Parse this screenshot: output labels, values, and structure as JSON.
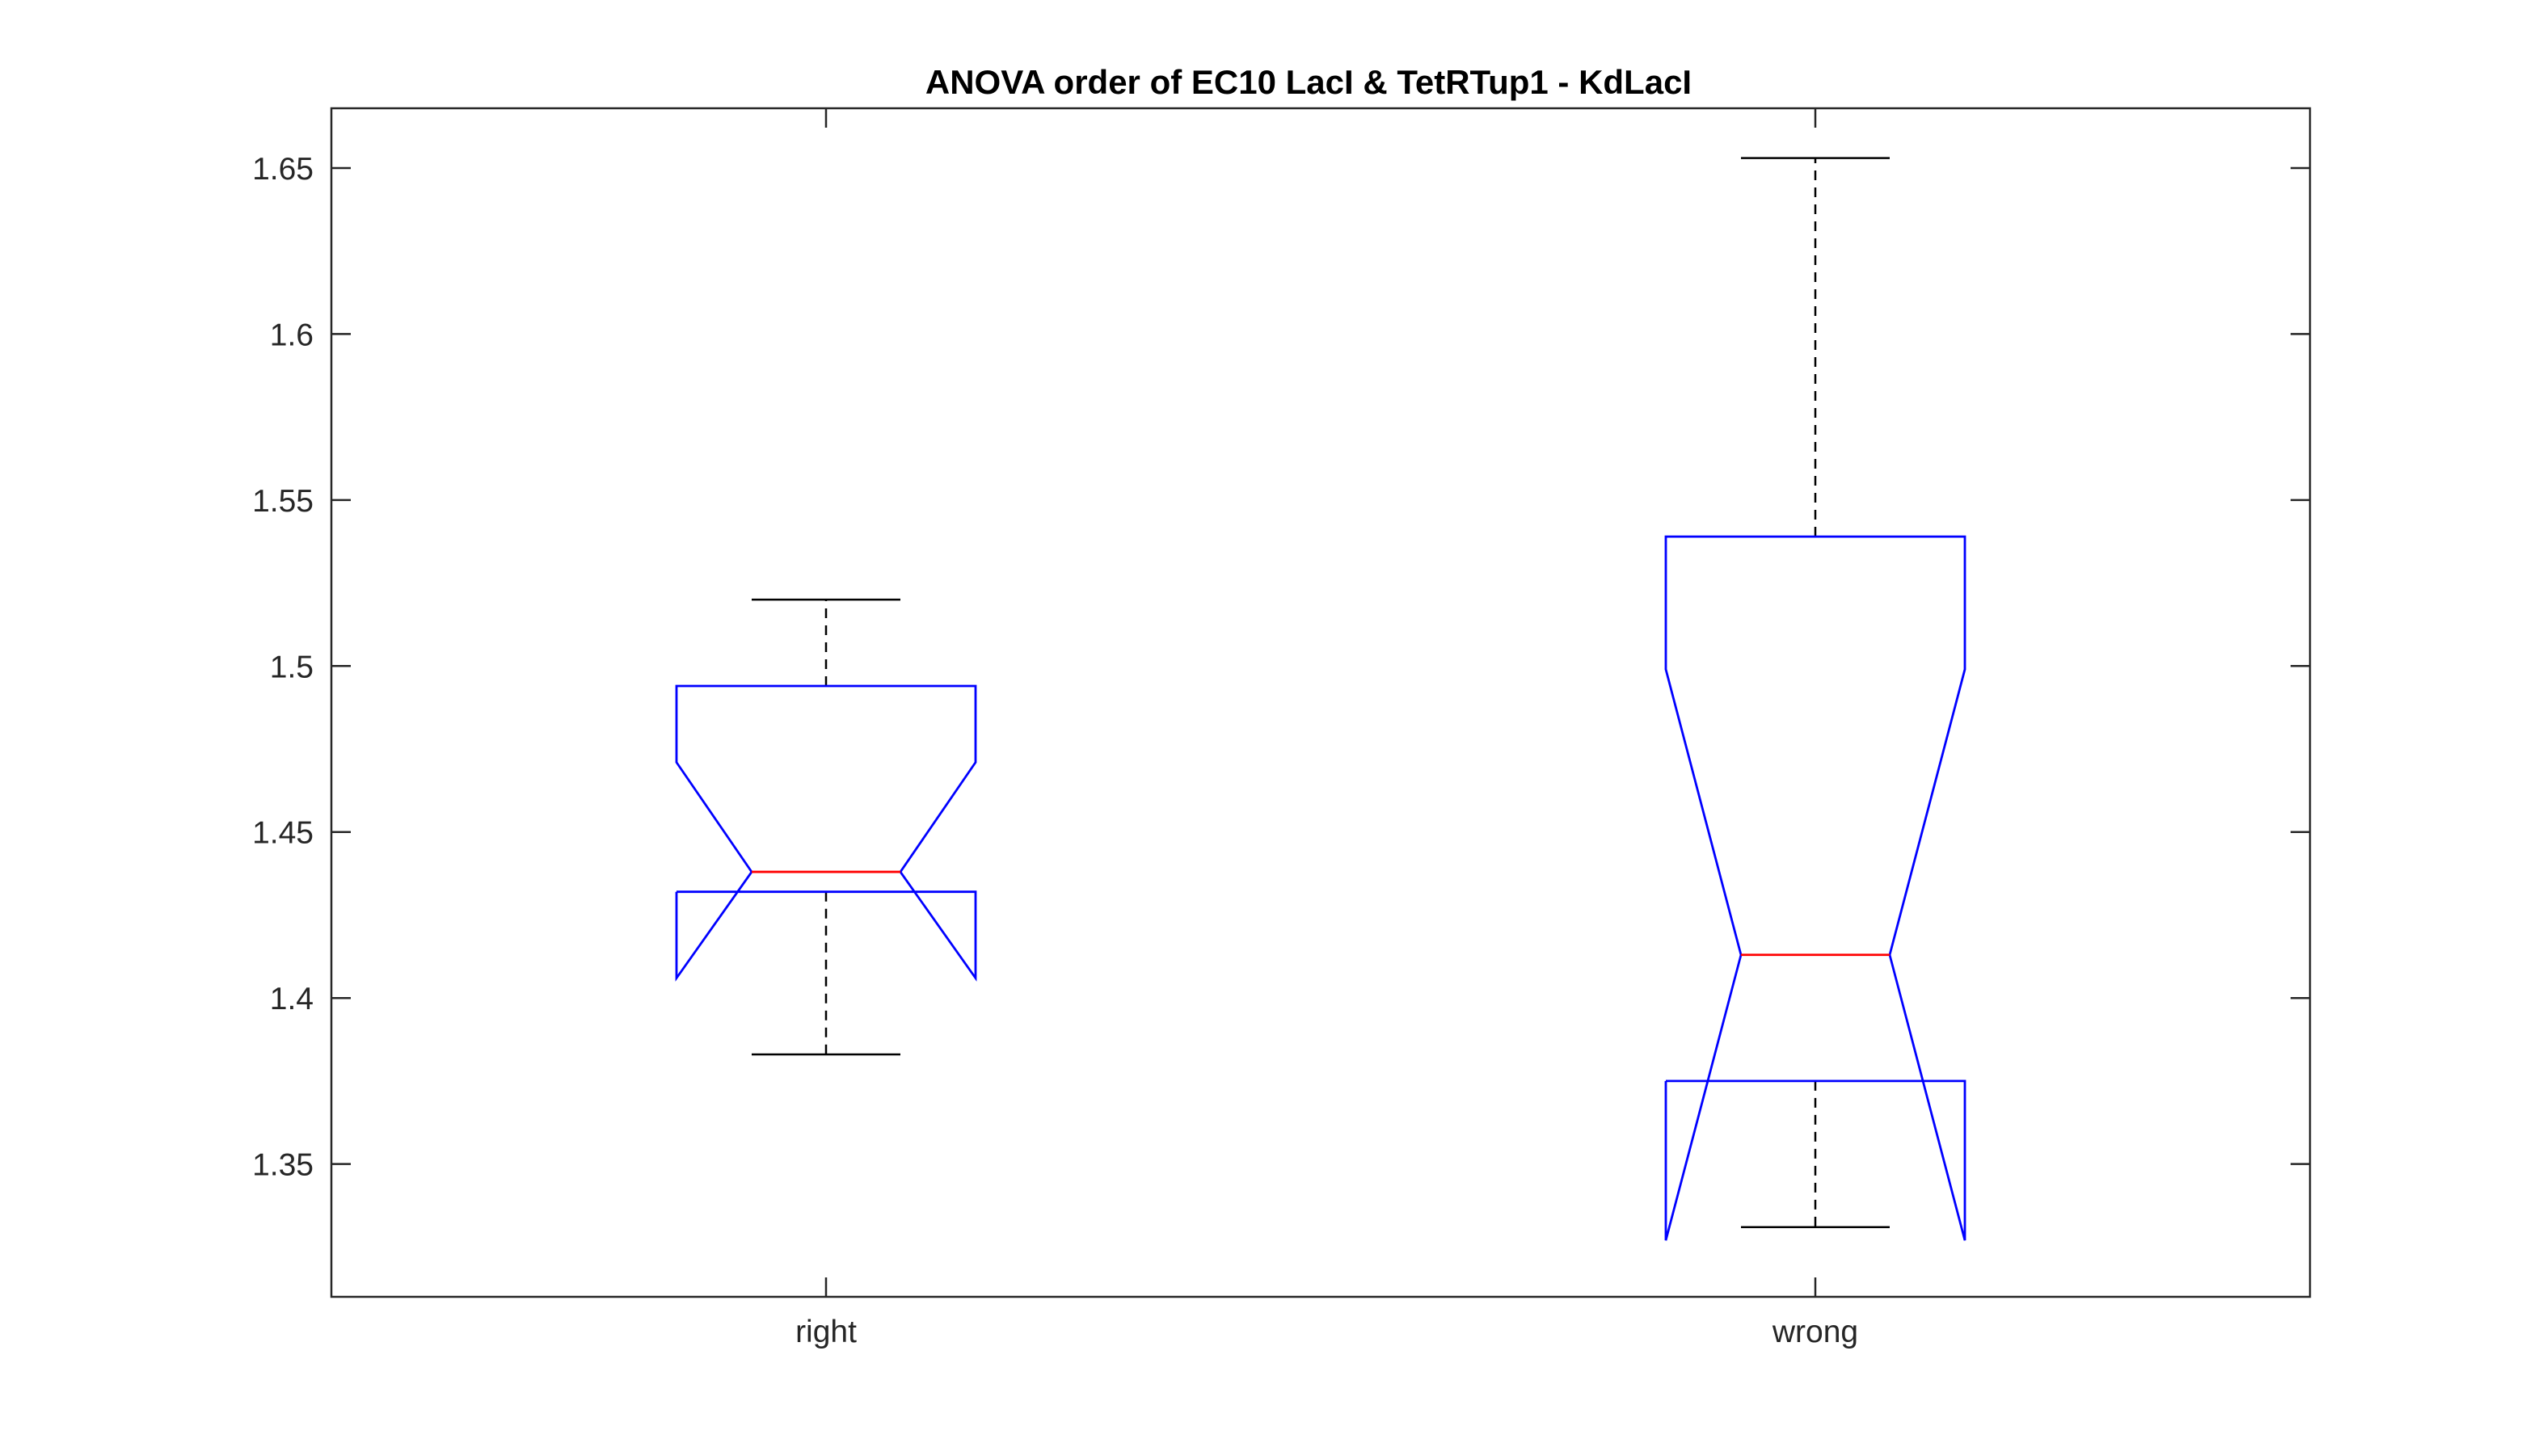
{
  "chart_data": {
    "type": "boxplot",
    "title": "ANOVA order of EC10 LacI & TetRTup1 - KdLacI",
    "xlabel": "",
    "ylabel": "",
    "categories": [
      "right",
      "wrong"
    ],
    "ylim": [
      1.31,
      1.668
    ],
    "yticks": [
      1.35,
      1.4,
      1.45,
      1.5,
      1.55,
      1.6,
      1.65
    ],
    "ytick_labels": [
      "1.35",
      "1.4",
      "1.45",
      "1.5",
      "1.55",
      "1.6",
      "1.65"
    ],
    "notched": true,
    "grid": false,
    "boxes": [
      {
        "category": "right",
        "whisker_low": 1.383,
        "q1": 1.432,
        "median": 1.438,
        "q3": 1.494,
        "whisker_high": 1.52,
        "notch_low": 1.406,
        "notch_high": 1.471
      },
      {
        "category": "wrong",
        "whisker_low": 1.331,
        "q1": 1.375,
        "median": 1.413,
        "q3": 1.539,
        "whisker_high": 1.653,
        "notch_low": 1.327,
        "notch_high": 1.499
      }
    ],
    "colors": {
      "box": "#0000ff",
      "median": "#ff0000",
      "whisker": "#000000",
      "axes": "#262626"
    }
  }
}
